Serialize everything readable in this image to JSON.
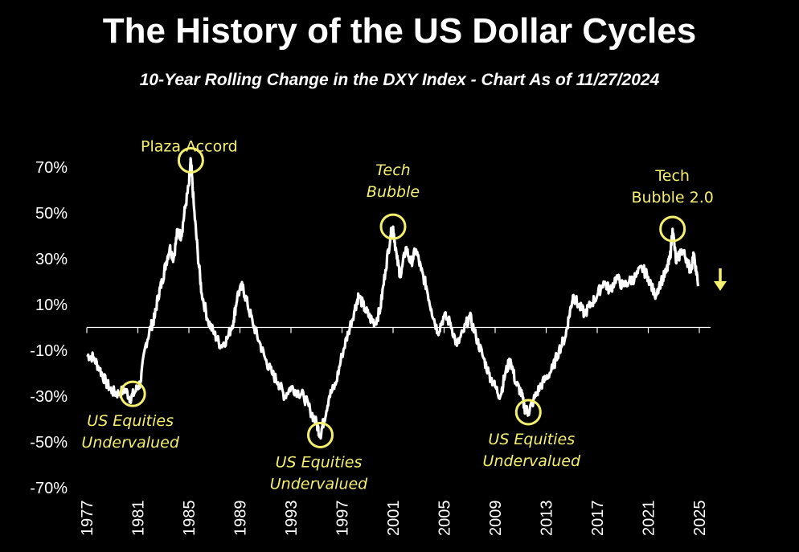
{
  "chart_data": {
    "type": "line",
    "title": "The History of the US Dollar Cycles",
    "subtitle": "10-Year Rolling Change in the DXY Index - Chart As of 11/27/2024",
    "xlabel": "",
    "ylabel": "",
    "xlim": [
      1977,
      2025
    ],
    "ylim": [
      -70,
      80
    ],
    "y_ticks": [
      70,
      50,
      30,
      10,
      -10,
      -30,
      -50,
      -70
    ],
    "y_tick_labels": [
      "70%",
      "50%",
      "30%",
      "10%",
      "-10%",
      "-30%",
      "-50%",
      "-70%"
    ],
    "x_ticks": [
      1977,
      1981,
      1985,
      1989,
      1993,
      1997,
      2001,
      2005,
      2009,
      2013,
      2017,
      2021,
      2025
    ],
    "x_tick_labels": [
      "1977",
      "1981",
      "1985",
      "1989",
      "1993",
      "1997",
      "2001",
      "2005",
      "2009",
      "2013",
      "2017",
      "2021",
      "2025"
    ],
    "grid": false,
    "zero_line": true,
    "line_color": "#ffffff",
    "annotation_color": "#f5ef6e",
    "series": [
      {
        "x": [
          1977.0,
          1977.5,
          1978.0,
          1978.5,
          1979.0,
          1979.5,
          1980.0,
          1980.4,
          1980.8,
          1981.2,
          1981.6,
          1982.0,
          1982.3,
          1982.6,
          1982.9,
          1983.2,
          1983.5,
          1983.8,
          1984.1,
          1984.4,
          1984.7,
          1985.0,
          1985.15,
          1985.4,
          1985.7,
          1986.0,
          1986.5,
          1987.0,
          1987.5,
          1988.0,
          1988.5,
          1988.8,
          1989.2,
          1989.6,
          1990.0,
          1990.5,
          1991.0,
          1991.5,
          1992.0,
          1992.5,
          1993.0,
          1993.5,
          1994.0,
          1994.5,
          1995.0,
          1995.3,
          1995.6,
          1996.0,
          1996.5,
          1997.0,
          1997.5,
          1998.0,
          1998.3,
          1998.8,
          1999.2,
          1999.6,
          2000.0,
          2000.4,
          2000.8,
          2001.0,
          2001.3,
          2001.6,
          2002.0,
          2002.4,
          2002.8,
          2003.2,
          2003.6,
          2004.0,
          2004.5,
          2005.0,
          2005.5,
          2006.0,
          2006.5,
          2007.0,
          2007.5,
          2008.0,
          2008.5,
          2009.0,
          2009.4,
          2009.8,
          2010.2,
          2010.6,
          2011.0,
          2011.3,
          2011.6,
          2012.0,
          2012.5,
          2013.0,
          2013.5,
          2014.0,
          2014.5,
          2014.8,
          2015.1,
          2015.5,
          2016.0,
          2016.5,
          2017.0,
          2017.5,
          2018.0,
          2018.5,
          2019.0,
          2019.5,
          2020.0,
          2020.5,
          2021.0,
          2021.5,
          2022.0,
          2022.4,
          2022.7,
          2022.9,
          2023.2,
          2023.6,
          2024.0,
          2024.3,
          2024.6,
          2024.9
        ],
        "values": [
          -12,
          -13,
          -18,
          -24,
          -28,
          -29,
          -27,
          -31,
          -28,
          -24,
          -8,
          0,
          4,
          14,
          20,
          28,
          35,
          30,
          42,
          40,
          52,
          62,
          73,
          52,
          32,
          15,
          3,
          -3,
          -8,
          -5,
          3,
          14,
          18,
          10,
          2,
          -6,
          -14,
          -20,
          -24,
          -30,
          -26,
          -28,
          -30,
          -36,
          -42,
          -47,
          -40,
          -30,
          -25,
          -12,
          -2,
          8,
          14,
          8,
          4,
          2,
          8,
          25,
          40,
          44,
          30,
          22,
          35,
          28,
          34,
          25,
          18,
          8,
          -2,
          5,
          2,
          -8,
          -2,
          5,
          -4,
          -12,
          -20,
          -26,
          -30,
          -20,
          -14,
          -24,
          -28,
          -35,
          -37,
          -32,
          -26,
          -22,
          -18,
          -10,
          -4,
          5,
          14,
          10,
          6,
          10,
          14,
          20,
          16,
          22,
          18,
          20,
          22,
          26,
          22,
          14,
          20,
          24,
          30,
          43,
          28,
          34,
          30,
          25,
          32,
          18
        ]
      }
    ],
    "annotations": [
      {
        "lines": [
          "Plaza Accord"
        ],
        "x": 1985.15,
        "y": 73
      },
      {
        "lines": [
          "Tech",
          "Bubble"
        ],
        "x": 2001.0,
        "y": 44
      },
      {
        "lines": [
          "Tech",
          "Bubble 2.0"
        ],
        "x": 2022.9,
        "y": 43
      },
      {
        "lines": [
          "US Equities",
          "Undervalued"
        ],
        "x": 1980.6,
        "y": -29
      },
      {
        "lines": [
          "US Equities",
          "Undervalued"
        ],
        "x": 1995.3,
        "y": -47
      },
      {
        "lines": [
          "US Equities",
          "Undervalued"
        ],
        "x": 2011.6,
        "y": -37
      }
    ],
    "arrow": {
      "direction": "down",
      "color": "#f5ef6e"
    }
  }
}
